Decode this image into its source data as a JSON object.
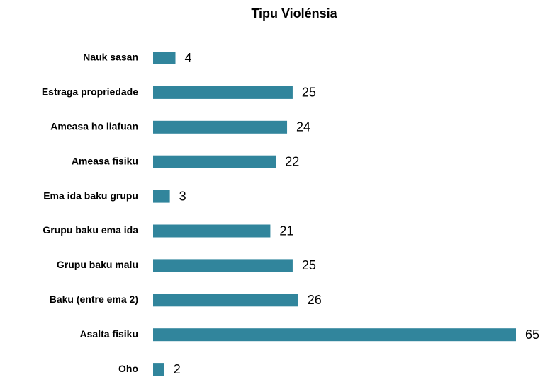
{
  "chart_data": {
    "type": "bar",
    "orientation": "horizontal",
    "title": "Tipu Violénsia",
    "categories": [
      "Nauk sasan",
      "Estraga propriedade",
      "Ameasa ho liafuan",
      "Ameasa fisiku",
      "Ema ida baku grupu",
      "Grupu baku ema ida",
      "Grupu baku malu",
      "Baku (entre ema 2)",
      "Asalta fisiku",
      "Oho"
    ],
    "values": [
      4,
      25,
      24,
      22,
      3,
      21,
      25,
      26,
      65,
      2
    ],
    "color": "#31859c"
  }
}
